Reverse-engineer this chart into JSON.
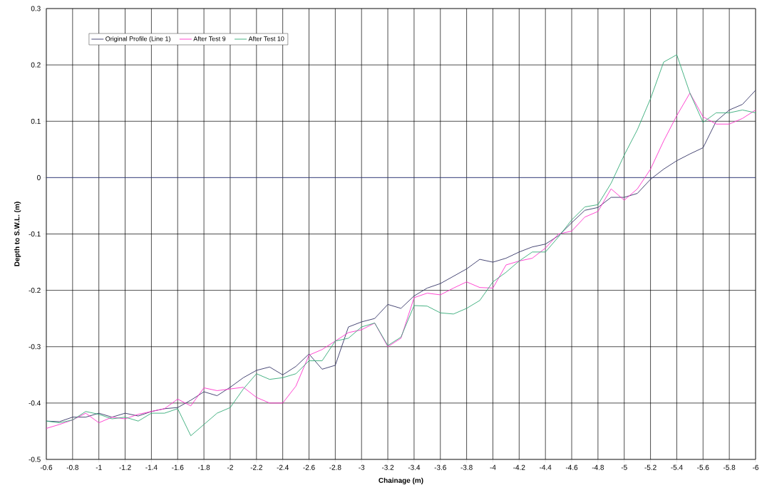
{
  "chart_data": {
    "type": "line",
    "xlabel": "Chainage (m)",
    "ylabel": "Depth to S.W.L.  (m)",
    "x": [
      -0.6,
      -0.7,
      -0.8,
      -0.9,
      -1,
      -1.1,
      -1.2,
      -1.3,
      -1.4,
      -1.5,
      -1.6,
      -1.7,
      -1.8,
      -1.9,
      -2,
      -2.1,
      -2.2,
      -2.3,
      -2.4,
      -2.5,
      -2.6,
      -2.7,
      -2.8,
      -2.9,
      -3,
      -3.1,
      -3.2,
      -3.3,
      -3.4,
      -3.5,
      -3.6,
      -3.7,
      -3.8,
      -3.9,
      -4,
      -4.1,
      -4.2,
      -4.3,
      -4.4,
      -4.5,
      -4.6,
      -4.7,
      -4.8,
      -4.9,
      -5,
      -5.1,
      -5.2,
      -5.3,
      -5.4,
      -5.5,
      -5.6,
      -5.7,
      -5.8,
      -5.9,
      -6
    ],
    "series": [
      {
        "name": "Original Profile (Line 1)",
        "color": "#333366",
        "values": [
          -0.432,
          -0.433,
          -0.425,
          -0.425,
          -0.418,
          -0.425,
          -0.418,
          -0.423,
          -0.415,
          -0.41,
          -0.408,
          -0.395,
          -0.38,
          -0.387,
          -0.372,
          -0.355,
          -0.342,
          -0.336,
          -0.35,
          -0.335,
          -0.313,
          -0.34,
          -0.333,
          -0.265,
          -0.256,
          -0.25,
          -0.225,
          -0.232,
          -0.21,
          -0.196,
          -0.188,
          -0.175,
          -0.162,
          -0.145,
          -0.15,
          -0.143,
          -0.132,
          -0.123,
          -0.118,
          -0.103,
          -0.08,
          -0.058,
          -0.053,
          -0.035,
          -0.035,
          -0.028,
          -0.003,
          0.015,
          0.03,
          0.042,
          0.053,
          0.1,
          0.12,
          0.13,
          0.155
        ]
      },
      {
        "name": "After Test 9",
        "color": "#ff33cc",
        "values": [
          -0.445,
          -0.438,
          -0.43,
          -0.418,
          -0.435,
          -0.425,
          -0.428,
          -0.42,
          -0.415,
          -0.41,
          -0.393,
          -0.405,
          -0.373,
          -0.378,
          -0.375,
          -0.372,
          -0.39,
          -0.4,
          -0.4,
          -0.37,
          -0.315,
          -0.305,
          -0.29,
          -0.275,
          -0.27,
          -0.258,
          -0.3,
          -0.285,
          -0.213,
          -0.205,
          -0.208,
          -0.196,
          -0.185,
          -0.195,
          -0.196,
          -0.155,
          -0.148,
          -0.143,
          -0.125,
          -0.1,
          -0.095,
          -0.07,
          -0.06,
          -0.02,
          -0.04,
          -0.02,
          0.015,
          0.065,
          0.11,
          0.15,
          0.108,
          0.095,
          0.095,
          0.105,
          0.12
        ]
      },
      {
        "name": "After Test 10",
        "color": "#33aa77",
        "values": [
          -0.432,
          -0.435,
          -0.43,
          -0.415,
          -0.42,
          -0.428,
          -0.425,
          -0.432,
          -0.418,
          -0.418,
          -0.41,
          -0.458,
          -0.438,
          -0.418,
          -0.408,
          -0.375,
          -0.348,
          -0.358,
          -0.355,
          -0.348,
          -0.325,
          -0.325,
          -0.29,
          -0.285,
          -0.265,
          -0.258,
          -0.298,
          -0.283,
          -0.227,
          -0.228,
          -0.24,
          -0.242,
          -0.232,
          -0.218,
          -0.185,
          -0.168,
          -0.148,
          -0.132,
          -0.132,
          -0.105,
          -0.075,
          -0.052,
          -0.048,
          -0.01,
          0.04,
          0.085,
          0.14,
          0.205,
          0.218,
          0.15,
          0.098,
          0.115,
          0.115,
          0.12,
          0.115
        ]
      }
    ],
    "xlim": [
      -0.6,
      -6
    ],
    "xticks": [
      -0.6,
      -0.8,
      -1,
      -1.2,
      -1.4,
      -1.6,
      -1.8,
      -2,
      -2.2,
      -2.4,
      -2.6,
      -2.8,
      -3,
      -3.2,
      -3.4,
      -3.6,
      -3.8,
      -4,
      -4.2,
      -4.4,
      -4.6,
      -4.8,
      -5,
      -5.2,
      -5.4,
      -5.6,
      -5.8,
      -6
    ],
    "ylim": [
      -0.5,
      0.3
    ],
    "yticks": [
      -0.5,
      -0.4,
      -0.3,
      -0.2,
      -0.1,
      0,
      0.1,
      0.2,
      0.3
    ],
    "ref_lines": [
      {
        "axis": "y",
        "value": 0,
        "color": "#4455bb"
      }
    ],
    "grid": true,
    "legend": "top left",
    "marker": "none",
    "line_style": "solid"
  }
}
